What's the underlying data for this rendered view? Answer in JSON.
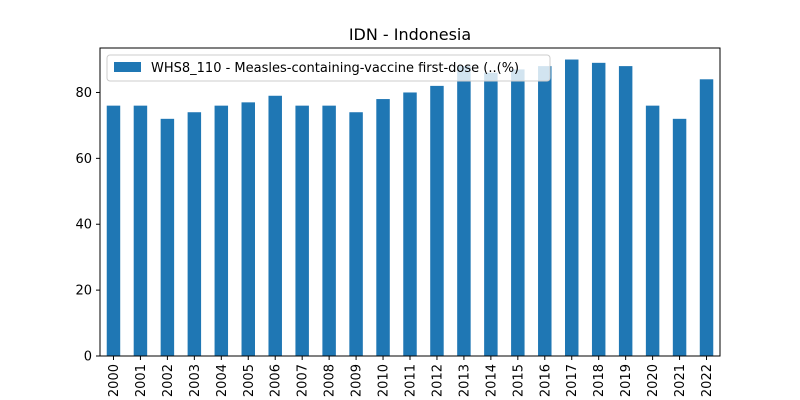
{
  "chart_data": {
    "type": "bar",
    "title": "IDN - Indonesia",
    "xlabel": "",
    "ylabel": "",
    "categories": [
      "2000",
      "2001",
      "2002",
      "2003",
      "2004",
      "2005",
      "2006",
      "2007",
      "2008",
      "2009",
      "2010",
      "2011",
      "2012",
      "2013",
      "2014",
      "2015",
      "2016",
      "2017",
      "2018",
      "2019",
      "2020",
      "2021",
      "2022"
    ],
    "series": [
      {
        "name": "WHS8_110 - Measles-containing-vaccine first-dose (..(%)",
        "color": "#1f77b4",
        "values": [
          76,
          76,
          72,
          74,
          76,
          77,
          79,
          76,
          76,
          74,
          78,
          80,
          82,
          88,
          86,
          87,
          88,
          90,
          89,
          88,
          76,
          72,
          84
        ]
      }
    ],
    "ylim": [
      0,
      93.5
    ],
    "yticks": [
      0,
      20,
      40,
      60,
      80
    ],
    "grid": false,
    "legend_position": "top-left"
  }
}
